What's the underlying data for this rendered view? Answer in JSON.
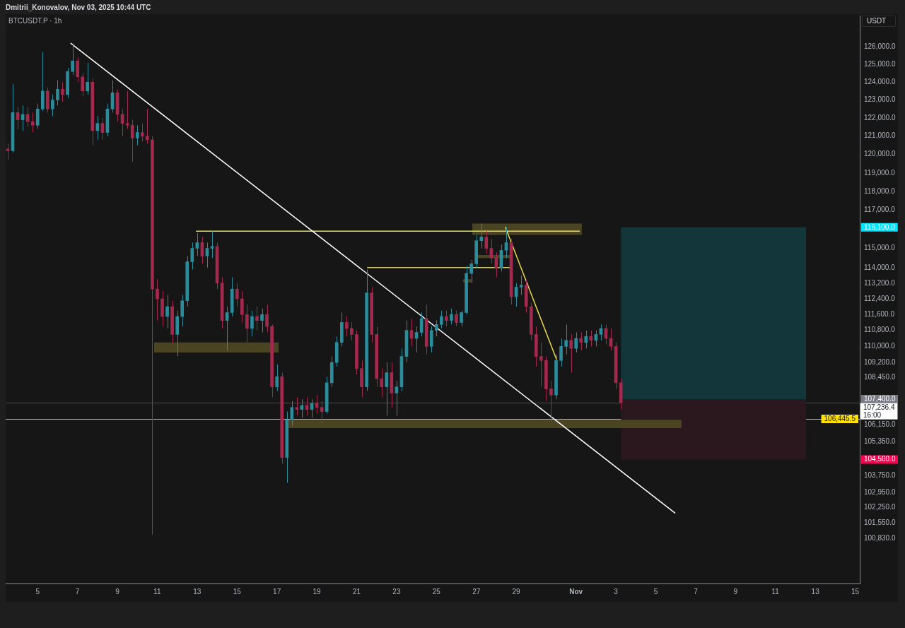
{
  "chart_data": {
    "type": "candlestick",
    "title": "BTCUSDT.P · 1h",
    "ylabel": "USDT",
    "annotations": [
      "Dmitrii_Konovalov, Nov 03, 2025 10:44 UTC"
    ],
    "x": [
      "2025-10-03T12:00",
      "2025-10-03T18:00",
      "2025-10-04T00:00",
      "2025-10-04T06:00",
      "2025-10-04T12:00",
      "2025-10-04T18:00",
      "2025-10-05T00:00",
      "2025-10-05T06:00",
      "2025-10-05T12:00",
      "2025-10-05T18:00",
      "2025-10-06T00:00",
      "2025-10-06T06:00",
      "2025-10-06T12:00",
      "2025-10-06T18:00",
      "2025-10-07T00:00",
      "2025-10-07T06:00",
      "2025-10-07T12:00",
      "2025-10-07T18:00",
      "2025-10-08T00:00",
      "2025-10-08T06:00",
      "2025-10-08T12:00",
      "2025-10-08T18:00",
      "2025-10-09T00:00",
      "2025-10-09T06:00",
      "2025-10-09T12:00",
      "2025-10-09T18:00",
      "2025-10-10T00:00",
      "2025-10-10T06:00",
      "2025-10-10T12:00",
      "2025-10-10T18:00",
      "2025-10-11T00:00",
      "2025-10-11T06:00",
      "2025-10-11T12:00",
      "2025-10-11T18:00",
      "2025-10-12T00:00",
      "2025-10-12T06:00",
      "2025-10-12T12:00",
      "2025-10-12T18:00",
      "2025-10-13T00:00",
      "2025-10-13T06:00",
      "2025-10-13T12:00",
      "2025-10-13T18:00",
      "2025-10-14T00:00",
      "2025-10-14T06:00",
      "2025-10-14T12:00",
      "2025-10-14T18:00",
      "2025-10-15T00:00",
      "2025-10-15T06:00",
      "2025-10-15T12:00",
      "2025-10-15T18:00",
      "2025-10-16T00:00",
      "2025-10-16T06:00",
      "2025-10-16T12:00",
      "2025-10-16T18:00",
      "2025-10-17T00:00",
      "2025-10-17T06:00",
      "2025-10-17T12:00",
      "2025-10-17T18:00",
      "2025-10-18T00:00",
      "2025-10-18T06:00",
      "2025-10-18T12:00",
      "2025-10-18T18:00",
      "2025-10-19T00:00",
      "2025-10-19T06:00",
      "2025-10-19T12:00",
      "2025-10-19T18:00",
      "2025-10-20T00:00",
      "2025-10-20T06:00",
      "2025-10-20T12:00",
      "2025-10-20T18:00",
      "2025-10-21T00:00",
      "2025-10-21T06:00",
      "2025-10-21T12:00",
      "2025-10-21T18:00",
      "2025-10-22T00:00",
      "2025-10-22T06:00",
      "2025-10-22T12:00",
      "2025-10-22T18:00",
      "2025-10-23T00:00",
      "2025-10-23T06:00",
      "2025-10-23T12:00",
      "2025-10-23T18:00",
      "2025-10-24T00:00",
      "2025-10-24T06:00",
      "2025-10-24T12:00",
      "2025-10-24T18:00",
      "2025-10-25T00:00",
      "2025-10-25T06:00",
      "2025-10-25T12:00",
      "2025-10-25T18:00",
      "2025-10-26T00:00",
      "2025-10-26T06:00",
      "2025-10-26T12:00",
      "2025-10-26T18:00",
      "2025-10-27T00:00",
      "2025-10-27T06:00",
      "2025-10-27T12:00",
      "2025-10-27T18:00",
      "2025-10-28T00:00",
      "2025-10-28T06:00",
      "2025-10-28T12:00",
      "2025-10-28T18:00",
      "2025-10-29T00:00",
      "2025-10-29T06:00",
      "2025-10-29T12:00",
      "2025-10-29T18:00",
      "2025-10-30T00:00",
      "2025-10-30T06:00",
      "2025-10-30T12:00",
      "2025-10-30T18:00",
      "2025-10-31T00:00",
      "2025-10-31T06:00",
      "2025-10-31T12:00",
      "2025-10-31T18:00",
      "2025-11-01T00:00",
      "2025-11-01T06:00",
      "2025-11-01T12:00",
      "2025-11-01T18:00",
      "2025-11-02T00:00",
      "2025-11-02T06:00",
      "2025-11-02T12:00",
      "2025-11-02T18:00",
      "2025-11-03T00:00",
      "2025-11-03T06:00"
    ],
    "ohlc": [
      [
        120300,
        120600,
        119700,
        120200
      ],
      [
        120200,
        123900,
        120100,
        122300
      ],
      [
        122300,
        122600,
        121400,
        121900
      ],
      [
        121900,
        122700,
        121300,
        122200
      ],
      [
        122200,
        122600,
        121500,
        121800
      ],
      [
        121800,
        122300,
        121200,
        121600
      ],
      [
        121600,
        122800,
        121400,
        122500
      ],
      [
        122500,
        125700,
        122400,
        123500
      ],
      [
        123500,
        123700,
        122300,
        122500
      ],
      [
        122500,
        123300,
        122100,
        123000
      ],
      [
        123000,
        124100,
        122700,
        123600
      ],
      [
        123600,
        124000,
        122900,
        123300
      ],
      [
        123300,
        124800,
        123100,
        124600
      ],
      [
        124600,
        126200,
        124400,
        125200
      ],
      [
        125200,
        125400,
        124000,
        124300
      ],
      [
        124300,
        124500,
        123200,
        123500
      ],
      [
        123500,
        125100,
        123300,
        124000
      ],
      [
        124000,
        124200,
        120500,
        121300
      ],
      [
        121300,
        122100,
        120800,
        121700
      ],
      [
        121700,
        122000,
        120800,
        121200
      ],
      [
        121200,
        122800,
        121000,
        122500
      ],
      [
        122500,
        124100,
        122300,
        123400
      ],
      [
        123400,
        123600,
        121800,
        122200
      ],
      [
        122200,
        122500,
        121000,
        121700
      ],
      [
        121700,
        123500,
        121400,
        121600
      ],
      [
        121600,
        121900,
        119600,
        120900
      ],
      [
        120900,
        121600,
        120500,
        121200
      ],
      [
        121200,
        121700,
        120700,
        121000
      ],
      [
        121000,
        122500,
        120600,
        120800
      ],
      [
        120800,
        121000,
        101000,
        112900
      ],
      [
        112900,
        113400,
        111300,
        112400
      ],
      [
        112400,
        112800,
        111000,
        111500
      ],
      [
        111500,
        112600,
        110900,
        112000
      ],
      [
        112000,
        112300,
        110200,
        110600
      ],
      [
        110600,
        111800,
        109500,
        111500
      ],
      [
        111500,
        112600,
        111000,
        112300
      ],
      [
        112300,
        114600,
        112000,
        114300
      ],
      [
        114300,
        115300,
        113900,
        115000
      ],
      [
        115000,
        115800,
        114600,
        115300
      ],
      [
        115300,
        115600,
        114200,
        114600
      ],
      [
        114600,
        115300,
        114000,
        115000
      ],
      [
        115000,
        115900,
        114500,
        115100
      ],
      [
        115100,
        115300,
        112900,
        113200
      ],
      [
        113200,
        113500,
        110900,
        111300
      ],
      [
        111300,
        112000,
        109800,
        111700
      ],
      [
        111700,
        113500,
        111500,
        112900
      ],
      [
        112900,
        113200,
        112000,
        112400
      ],
      [
        112400,
        112800,
        111200,
        111600
      ],
      [
        111600,
        112100,
        110200,
        110900
      ],
      [
        110900,
        111800,
        110500,
        111500
      ],
      [
        111500,
        112000,
        110800,
        111300
      ],
      [
        111300,
        111900,
        110700,
        111600
      ],
      [
        111600,
        112100,
        110700,
        111000
      ],
      [
        111000,
        111100,
        107500,
        108000
      ],
      [
        108000,
        109100,
        107800,
        108500
      ],
      [
        108500,
        108700,
        104300,
        104600
      ],
      [
        104600,
        106800,
        103400,
        106400
      ],
      [
        106400,
        107300,
        106100,
        107000
      ],
      [
        107000,
        107500,
        106600,
        106900
      ],
      [
        106900,
        107400,
        106500,
        107100
      ],
      [
        107100,
        107500,
        106600,
        106900
      ],
      [
        106900,
        107400,
        106500,
        107200
      ],
      [
        107200,
        107600,
        106700,
        107000
      ],
      [
        107000,
        107300,
        106200,
        106800
      ],
      [
        106800,
        108500,
        106700,
        108200
      ],
      [
        108200,
        109500,
        108000,
        109200
      ],
      [
        109200,
        110500,
        109000,
        110200
      ],
      [
        110200,
        111700,
        110000,
        111200
      ],
      [
        111200,
        111500,
        110500,
        110900
      ],
      [
        110900,
        111200,
        110300,
        110600
      ],
      [
        110600,
        110800,
        108600,
        108900
      ],
      [
        108900,
        109300,
        107500,
        108000
      ],
      [
        108000,
        113900,
        107800,
        112700
      ],
      [
        112700,
        113000,
        110200,
        110600
      ],
      [
        110600,
        111000,
        108000,
        108400
      ],
      [
        108400,
        108900,
        107500,
        108000
      ],
      [
        108000,
        109200,
        106600,
        108700
      ],
      [
        108700,
        109200,
        107000,
        107700
      ],
      [
        107700,
        108300,
        106600,
        108000
      ],
      [
        108000,
        109900,
        107800,
        109500
      ],
      [
        109500,
        111300,
        109200,
        110800
      ],
      [
        110800,
        111400,
        110000,
        110400
      ],
      [
        110400,
        111000,
        109700,
        110700
      ],
      [
        110700,
        111700,
        110500,
        111400
      ],
      [
        111400,
        112100,
        109600,
        110000
      ],
      [
        110000,
        111000,
        109700,
        110800
      ],
      [
        110800,
        111300,
        110500,
        111100
      ],
      [
        111100,
        111800,
        110900,
        111500
      ],
      [
        111500,
        111800,
        111000,
        111300
      ],
      [
        111300,
        111900,
        111100,
        111600
      ],
      [
        111600,
        111800,
        111000,
        111200
      ],
      [
        111200,
        111800,
        111000,
        111700
      ],
      [
        111700,
        114100,
        111600,
        113700
      ],
      [
        113700,
        114400,
        113200,
        114200
      ],
      [
        114200,
        115700,
        114000,
        115400
      ],
      [
        115400,
        116300,
        115000,
        115600
      ],
      [
        115600,
        115900,
        114700,
        115000
      ],
      [
        115000,
        115500,
        114200,
        114500
      ],
      [
        114500,
        114800,
        113500,
        114000
      ],
      [
        114000,
        115200,
        113800,
        114900
      ],
      [
        114900,
        116100,
        114500,
        115300
      ],
      [
        115300,
        115500,
        112100,
        112500
      ],
      [
        112500,
        113200,
        112000,
        113000
      ],
      [
        113000,
        113600,
        112600,
        113100
      ],
      [
        113100,
        113400,
        111700,
        112000
      ],
      [
        112000,
        112200,
        110300,
        110600
      ],
      [
        110600,
        111000,
        109000,
        109500
      ],
      [
        109500,
        110200,
        108000,
        109300
      ],
      [
        109300,
        109500,
        107300,
        107900
      ],
      [
        107900,
        108300,
        106300,
        107600
      ],
      [
        107600,
        109600,
        107400,
        109300
      ],
      [
        109300,
        110400,
        109000,
        110000
      ],
      [
        110000,
        111100,
        109600,
        110300
      ],
      [
        110300,
        110600,
        108700,
        109900
      ],
      [
        109900,
        110700,
        109700,
        110400
      ],
      [
        110400,
        110700,
        109800,
        110200
      ],
      [
        110200,
        110800,
        109900,
        110500
      ],
      [
        110500,
        110800,
        110000,
        110300
      ],
      [
        110300,
        110800,
        110000,
        110600
      ],
      [
        110600,
        111100,
        110300,
        110900
      ],
      [
        110900,
        111100,
        110100,
        110400
      ],
      [
        110400,
        110900,
        109800,
        110000
      ],
      [
        110000,
        110200,
        107900,
        108200
      ],
      [
        108200,
        108400,
        106900,
        107236.4
      ]
    ],
    "colors": [
      "#a3294f",
      "#2b8c9b",
      "#a3294f",
      "#2b8c9b",
      "#a3294f",
      "#a3294f",
      "#2b8c9b",
      "#2b8c9b",
      "#a3294f",
      "#2b8c9b",
      "#2b8c9b",
      "#a3294f",
      "#2b8c9b",
      "#2b8c9b",
      "#a3294f",
      "#a3294f",
      "#2b8c9b",
      "#a3294f",
      "#2b8c9b",
      "#a3294f",
      "#2b8c9b",
      "#2b8c9b",
      "#a3294f",
      "#a3294f",
      "#a3294f",
      "#a3294f",
      "#2b8c9b",
      "#a3294f",
      "#a3294f",
      "#a3294f",
      "#a3294f",
      "#a3294f",
      "#2b8c9b",
      "#a3294f",
      "#2b8c9b",
      "#2b8c9b",
      "#2b8c9b",
      "#2b8c9b",
      "#2b8c9b",
      "#a3294f",
      "#2b8c9b",
      "#2b8c9b",
      "#a3294f",
      "#a3294f",
      "#2b8c9b",
      "#2b8c9b",
      "#a3294f",
      "#a3294f",
      "#a3294f",
      "#2b8c9b",
      "#a3294f",
      "#2b8c9b",
      "#a3294f",
      "#a3294f",
      "#2b8c9b",
      "#a3294f",
      "#2b8c9b",
      "#2b8c9b",
      "#a3294f",
      "#2b8c9b",
      "#a3294f",
      "#2b8c9b",
      "#a3294f",
      "#a3294f",
      "#2b8c9b",
      "#2b8c9b",
      "#2b8c9b",
      "#2b8c9b",
      "#a3294f",
      "#a3294f",
      "#a3294f",
      "#a3294f",
      "#2b8c9b",
      "#a3294f",
      "#a3294f",
      "#a3294f",
      "#2b8c9b",
      "#a3294f",
      "#2b8c9b",
      "#2b8c9b",
      "#2b8c9b",
      "#a3294f",
      "#2b8c9b",
      "#2b8c9b",
      "#a3294f",
      "#2b8c9b",
      "#2b8c9b",
      "#2b8c9b",
      "#a3294f",
      "#2b8c9b",
      "#a3294f",
      "#2b8c9b",
      "#2b8c9b",
      "#2b8c9b",
      "#2b8c9b",
      "#2b8c9b",
      "#a3294f",
      "#a3294f",
      "#a3294f",
      "#2b8c9b",
      "#2b8c9b",
      "#a3294f",
      "#2b8c9b",
      "#2b8c9b",
      "#a3294f",
      "#a3294f",
      "#a3294f",
      "#a3294f",
      "#a3294f",
      "#a3294f",
      "#2b8c9b",
      "#2b8c9b",
      "#2b8c9b",
      "#a3294f",
      "#2b8c9b",
      "#a3294f",
      "#2b8c9b",
      "#a3294f",
      "#2b8c9b",
      "#2b8c9b",
      "#a3294f",
      "#a3294f",
      "#a3294f",
      "#a3294f"
    ],
    "series": [
      {
        "type": "line",
        "color": "#4b4423",
        "x": [
          "2025-10-10T20:00",
          "2025-10-17T02:00"
        ],
        "values": [
          null,
          null
        ],
        "lower": [
          109700,
          109700
        ],
        "upper": [
          110200,
          110200
        ]
      },
      {
        "type": "line",
        "color": "#4b4423",
        "x": [
          "2025-10-26T19:00",
          "2025-11-01T07:00"
        ],
        "values": [
          null,
          null
        ],
        "lower": [
          115700,
          115700
        ],
        "upper": [
          116300,
          116300
        ]
      },
      {
        "type": "line",
        "color": "#4b4423",
        "x": [
          "2025-10-26T22:00",
          "2025-10-28T18:00"
        ],
        "values": [
          null,
          null
        ],
        "lower": [
          114500,
          114500
        ],
        "upper": [
          114650,
          114650
        ]
      },
      {
        "type": "line",
        "color": "#4b4423",
        "x": [
          "2025-10-26T08:00",
          "2025-10-26T18:00"
        ],
        "values": [
          null,
          null
        ],
        "lower": [
          113250,
          113250
        ],
        "upper": [
          113400,
          113400
        ]
      },
      {
        "type": "line",
        "color": "#4b4423",
        "x": [
          "2025-10-17T14:00",
          "2025-11-06T07:00"
        ],
        "values": [
          null,
          null
        ],
        "lower": [
          106000,
          106000
        ],
        "upper": [
          106400,
          106400
        ]
      },
      {
        "type": "line",
        "color": "#13363a",
        "x": [
          "2025-11-03T06:00",
          "2025-11-12T13:00"
        ],
        "values": [
          null,
          null
        ],
        "lower": [
          107400,
          107400
        ],
        "upper": [
          116100,
          116100
        ]
      },
      {
        "type": "line",
        "color": "#2b181e",
        "x": [
          "2025-11-03T06:00",
          "2025-11-12T13:00"
        ],
        "values": [
          null,
          null
        ],
        "lower": [
          104500,
          104500
        ],
        "upper": [
          107400,
          107400
        ]
      },
      {
        "type": "line",
        "color": "#ffffff",
        "x": [
          "2025-10-06T16:00",
          "2025-11-05T23:00"
        ],
        "values": [
          126200,
          102000
        ]
      },
      {
        "type": "line",
        "color": "#e8e04a",
        "x": [
          "2025-10-12T23:00",
          "2025-11-01T04:00"
        ],
        "values": [
          115900,
          115900
        ]
      },
      {
        "type": "line",
        "color": "#d8cc70",
        "x": [
          "2025-10-21T13:00",
          "2025-10-28T18:00"
        ],
        "values": [
          114000,
          114000
        ]
      },
      {
        "type": "line",
        "color": "#e8d84a",
        "x": [
          "2025-10-28T11:00",
          "2025-10-31T01:00"
        ],
        "values": [
          116100,
          109300
        ]
      }
    ],
    "ref_lines": [
      {
        "axis": "y",
        "value": 107236.4,
        "label": "107,236.4\n16:00",
        "color": "#4a4a4a"
      },
      {
        "axis": "y",
        "value": 106445.5,
        "label": "106,445.5",
        "color": "#cdbe50"
      }
    ],
    "xlim": [
      "2025-10-03T09:30",
      "2025-11-15T05:30"
    ],
    "xticks": [
      {
        "value": "2025-10-05",
        "label": "5"
      },
      {
        "value": "2025-10-07",
        "label": "7"
      },
      {
        "value": "2025-10-09",
        "label": "9"
      },
      {
        "value": "2025-10-11",
        "label": "11"
      },
      {
        "value": "2025-10-13",
        "label": "13"
      },
      {
        "value": "2025-10-15",
        "label": "15"
      },
      {
        "value": "2025-10-17",
        "label": "17"
      },
      {
        "value": "2025-10-19",
        "label": "19"
      },
      {
        "value": "2025-10-21",
        "label": "21"
      },
      {
        "value": "2025-10-23",
        "label": "23"
      },
      {
        "value": "2025-10-25",
        "label": "25"
      },
      {
        "value": "2025-10-27",
        "label": "27"
      },
      {
        "value": "2025-10-29",
        "label": "29"
      },
      {
        "value": "2025-11-01",
        "label": "Nov"
      },
      {
        "value": "2025-11-03",
        "label": "3"
      },
      {
        "value": "2025-11-05",
        "label": "5"
      },
      {
        "value": "2025-11-07",
        "label": "7"
      },
      {
        "value": "2025-11-09",
        "label": "9"
      },
      {
        "value": "2025-11-11",
        "label": "11"
      },
      {
        "value": "2025-11-13",
        "label": "13"
      },
      {
        "value": "2025-11-15",
        "label": "15"
      }
    ],
    "ylim": [
      98790,
      127800
    ],
    "yticks": [
      {
        "value": 126000,
        "label": "126,000.0"
      },
      {
        "value": 125000,
        "label": "125,000.0"
      },
      {
        "value": 124000,
        "label": "124,000.0"
      },
      {
        "value": 123000,
        "label": "123,000.0"
      },
      {
        "value": 122000,
        "label": "122,000.0"
      },
      {
        "value": 121000,
        "label": "121,000.0"
      },
      {
        "value": 120000,
        "label": "120,000.0"
      },
      {
        "value": 119000,
        "label": "119,000.0"
      },
      {
        "value": 118000,
        "label": "118,000.0"
      },
      {
        "value": 117000,
        "label": "117,000.0"
      },
      {
        "value": 116100,
        "label": "116,100.0"
      },
      {
        "value": 115000,
        "label": "115,000.0"
      },
      {
        "value": 114000,
        "label": "114,000.0"
      },
      {
        "value": 113200,
        "label": "113,200.0"
      },
      {
        "value": 112400,
        "label": "112,400.0"
      },
      {
        "value": 111600,
        "label": "111,600.0"
      },
      {
        "value": 110800,
        "label": "110,800.0"
      },
      {
        "value": 110000,
        "label": "110,000.0"
      },
      {
        "value": 109200,
        "label": "109,200.0"
      },
      {
        "value": 108450,
        "label": "108,450.0"
      },
      {
        "value": 107400,
        "label": "107,400.0"
      },
      {
        "value": 106150,
        "label": "106,150.0"
      },
      {
        "value": 105350,
        "label": "105,350.0"
      },
      {
        "value": 104500,
        "label": "104,500.0"
      },
      {
        "value": 103750,
        "label": "103,750.0"
      },
      {
        "value": 102950,
        "label": "102,950.0"
      },
      {
        "value": 102250,
        "label": "102,250.0"
      },
      {
        "value": 101550,
        "label": "101,550.0"
      },
      {
        "value": 100830,
        "label": "100,830.0"
      }
    ],
    "log": "y"
  }
}
